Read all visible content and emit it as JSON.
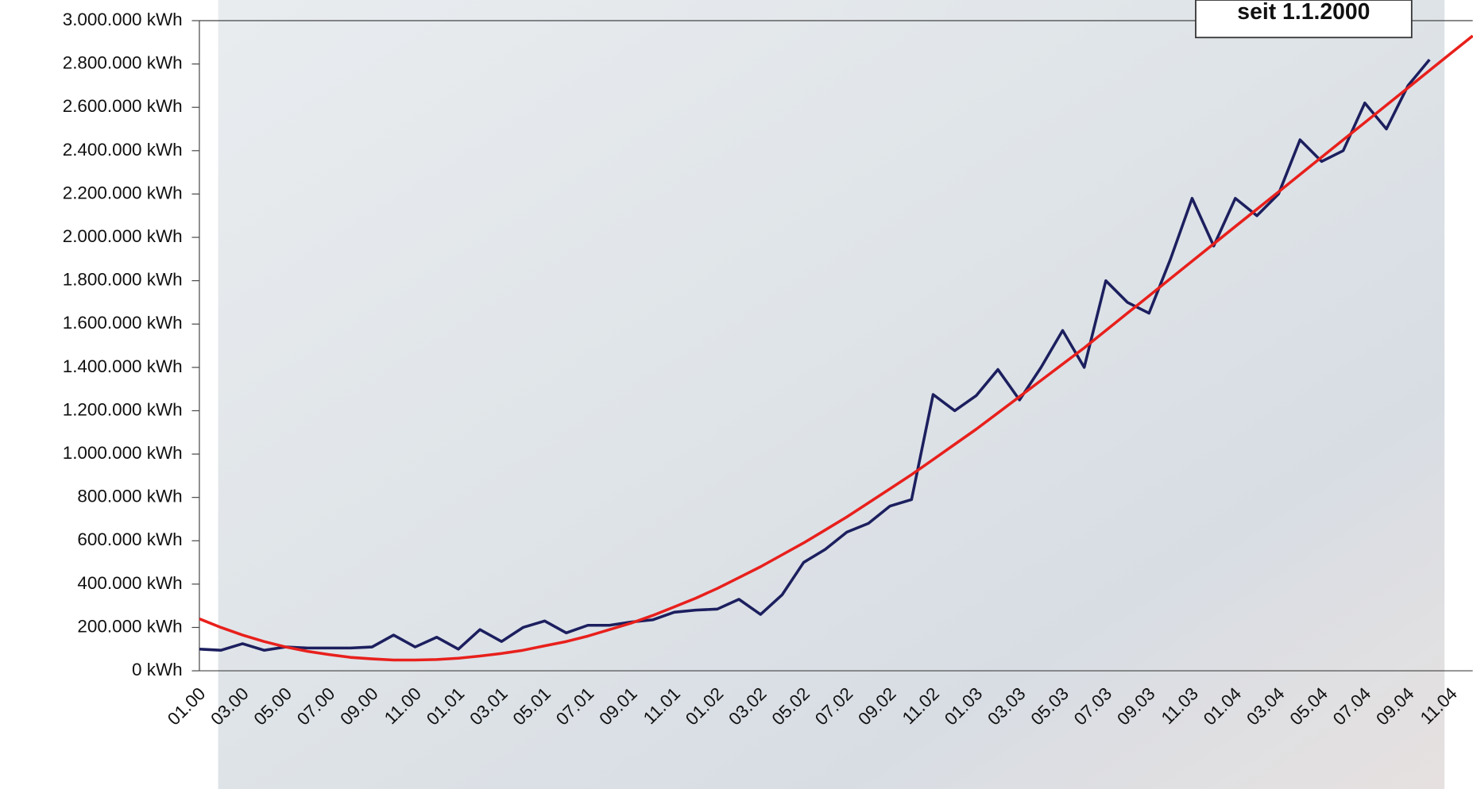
{
  "chart_data": {
    "type": "line",
    "annotation": "seit 1.1.2000",
    "categories": [
      "01.00",
      null,
      "03.00",
      null,
      "05.00",
      null,
      "07.00",
      null,
      "09.00",
      null,
      "11.00",
      null,
      "01.01",
      null,
      "03.01",
      null,
      "05.01",
      null,
      "07.01",
      null,
      "09.01",
      null,
      "11.01",
      null,
      "01.02",
      null,
      "03.02",
      null,
      "05.02",
      null,
      "07.02",
      null,
      "09.02",
      null,
      "11.02",
      null,
      "01.03",
      null,
      "03.03",
      null,
      "05.03",
      null,
      "07.03",
      null,
      "09.03",
      null,
      "11.03",
      null,
      "01.04",
      null,
      "03.04",
      null,
      "05.04",
      null,
      "07.04",
      null,
      "09.04",
      null,
      "11.04",
      null
    ],
    "series": [
      {
        "color": "#1c1f5e",
        "values": [
          100000,
          95000,
          125000,
          95000,
          110000,
          105000,
          105000,
          105000,
          110000,
          165000,
          110000,
          155000,
          100000,
          190000,
          135000,
          200000,
          230000,
          175000,
          210000,
          210000,
          225000,
          235000,
          270000,
          280000,
          285000,
          330000,
          260000,
          350000,
          500000,
          560000,
          640000,
          680000,
          760000,
          790000,
          1275000,
          1200000,
          1270000,
          1390000,
          1250000,
          1400000,
          1570000,
          1400000,
          1800000,
          1700000,
          1650000,
          1900000,
          2180000,
          1960000,
          2180000,
          2100000,
          2200000,
          2450000,
          2350000,
          2400000,
          2620000,
          2500000,
          2700000,
          2820000,
          null,
          null
        ]
      },
      {
        "color": "#e8201c",
        "values": [
          240000,
          200000,
          165000,
          135000,
          110000,
          90000,
          75000,
          62000,
          55000,
          50000,
          50000,
          52000,
          58000,
          68000,
          80000,
          95000,
          115000,
          135000,
          160000,
          190000,
          220000,
          255000,
          295000,
          335000,
          380000,
          430000,
          480000,
          535000,
          590000,
          650000,
          710000,
          775000,
          840000,
          905000,
          975000,
          1045000,
          1115000,
          1190000,
          1265000,
          1340000,
          1415000,
          1490000,
          1570000,
          1650000,
          1730000,
          1810000,
          1890000,
          1970000,
          2050000,
          2130000,
          2210000,
          2290000,
          2370000,
          2450000,
          2530000,
          2610000,
          2690000,
          2770000,
          2850000,
          2930000
        ]
      }
    ],
    "ylim": [
      0,
      3000000
    ],
    "yticks": [
      {
        "value": 0,
        "label": "0 kWh"
      },
      {
        "value": 200000,
        "label": "200.000 kWh"
      },
      {
        "value": 400000,
        "label": "400.000 kWh"
      },
      {
        "value": 600000,
        "label": "600.000 kWh"
      },
      {
        "value": 800000,
        "label": "800.000 kWh"
      },
      {
        "value": 1000000,
        "label": "1.000.000 kWh"
      },
      {
        "value": 1200000,
        "label": "1.200.000 kWh"
      },
      {
        "value": 1400000,
        "label": "1.400.000 kWh"
      },
      {
        "value": 1600000,
        "label": "1.600.000 kWh"
      },
      {
        "value": 1800000,
        "label": "1.800.000 kWh"
      },
      {
        "value": 2000000,
        "label": "2.000.000 kWh"
      },
      {
        "value": 2200000,
        "label": "2.200.000 kWh"
      },
      {
        "value": 2400000,
        "label": "2.400.000 kWh"
      },
      {
        "value": 2600000,
        "label": "2.600.000 kWh"
      },
      {
        "value": 2800000,
        "label": "2.800.000 kWh"
      },
      {
        "value": 3000000,
        "label": "3.000.000 kWh"
      }
    ]
  }
}
